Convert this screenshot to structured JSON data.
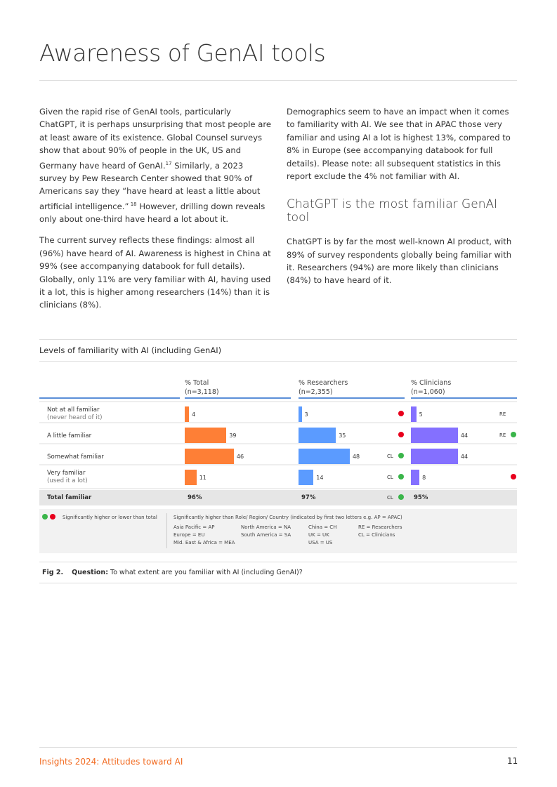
{
  "title": "Awareness of GenAI tools",
  "left_col": {
    "p1": "Given the rapid rise of GenAI tools, particularly ChatGPT, it is perhaps unsurprising that most people are at least aware of its existence. Global Counsel surveys show that about 90% of people in the UK, US and Germany have heard of GenAI.",
    "p1_sup1": "17",
    "p1b": " Similarly, a 2023 survey by Pew Research Center showed that 90% of Americans say they “have heard at least a little about artificial intelligence.”",
    "p1_sup2": " 18",
    "p1c": " However, drilling down reveals only about one-third have heard a lot about it.",
    "p2": "The current survey reflects these findings: almost all (96%) have heard of AI. Awareness is highest in China at 99% (see accompanying databook for full details). Globally, only 11% are very familiar with AI, having used it a lot, this is higher among researchers (14%) than it is clinicians (8%)."
  },
  "right_col": {
    "p1": "Demographics seem to have an impact when it comes to familiarity with AI. We see that in APAC those very familiar and using AI a lot is highest 13%, compared to 8% in Europe (see accompanying databook for full details). Please note: all subsequent statistics in this report exclude the 4% not familiar with AI.",
    "heading": "ChatGPT is the most familiar GenAI tool",
    "p2": "ChatGPT is by far the most well-known AI product, with 89% of survey respondents globally being familiar with it. Researchers (94%) are more likely than clinicians (84%) to have heard of it."
  },
  "chart_data": {
    "type": "bar",
    "title": "Levels of familiarity with AI (including GenAI)",
    "categories": [
      {
        "label": "Not at all familiar",
        "sub": "(never heard of it)"
      },
      {
        "label": "A little familiar",
        "sub": ""
      },
      {
        "label": "Somewhat familiar",
        "sub": ""
      },
      {
        "label": "Very familiar",
        "sub": "(used it a lot)"
      }
    ],
    "series": [
      {
        "name": "% Total",
        "n": "(n=3,118)",
        "color": "#fe7f36",
        "values": [
          4,
          39,
          46,
          11
        ],
        "total": "96%",
        "markers": [
          [],
          [],
          [],
          []
        ],
        "total_marker": []
      },
      {
        "name": "% Researchers",
        "n": "(n=2,355)",
        "color": "#5b9bff",
        "values": [
          3,
          35,
          48,
          14
        ],
        "total": "97%",
        "markers": [
          [
            "",
            "red"
          ],
          [
            "",
            "red"
          ],
          [
            "CL",
            "green"
          ],
          [
            "CL",
            "green"
          ]
        ],
        "total_marker": [
          "CL",
          "green"
        ]
      },
      {
        "name": "% Clinicians",
        "n": "(n=1,060)",
        "color": "#8470ff",
        "values": [
          5,
          44,
          44,
          8
        ],
        "total": "95%",
        "markers": [
          [
            "RE",
            ""
          ],
          [
            "RE",
            "green"
          ],
          [
            "",
            ""
          ],
          [
            "",
            "red"
          ]
        ],
        "total_marker": []
      }
    ],
    "total_label": "Total familiar",
    "colors": {
      "green": "#3ab54a",
      "red": "#e8001c"
    }
  },
  "legend": {
    "sig_total": "Significantly higher or lower than total",
    "sig_group": "Significantly higher than Role/ Region/ Country (indicated by first two letters e.g. AP = APAC)",
    "codes": [
      [
        "Asia Pacific = AP",
        "Europe = EU",
        "Mid. East & Africa = MEA"
      ],
      [
        "North America  = NA",
        "South America = SA"
      ],
      [
        "China = CH",
        "UK = UK",
        "USA = US"
      ],
      [
        "RE = Researchers",
        "CL = Clinicians"
      ]
    ]
  },
  "fig": {
    "num": "Fig 2.",
    "q_label": "Question:",
    "q_text": " To what extent are you familiar with AI (including GenAI)?"
  },
  "footer": {
    "title": "Insights 2024: Attitudes toward AI",
    "page": "11"
  }
}
